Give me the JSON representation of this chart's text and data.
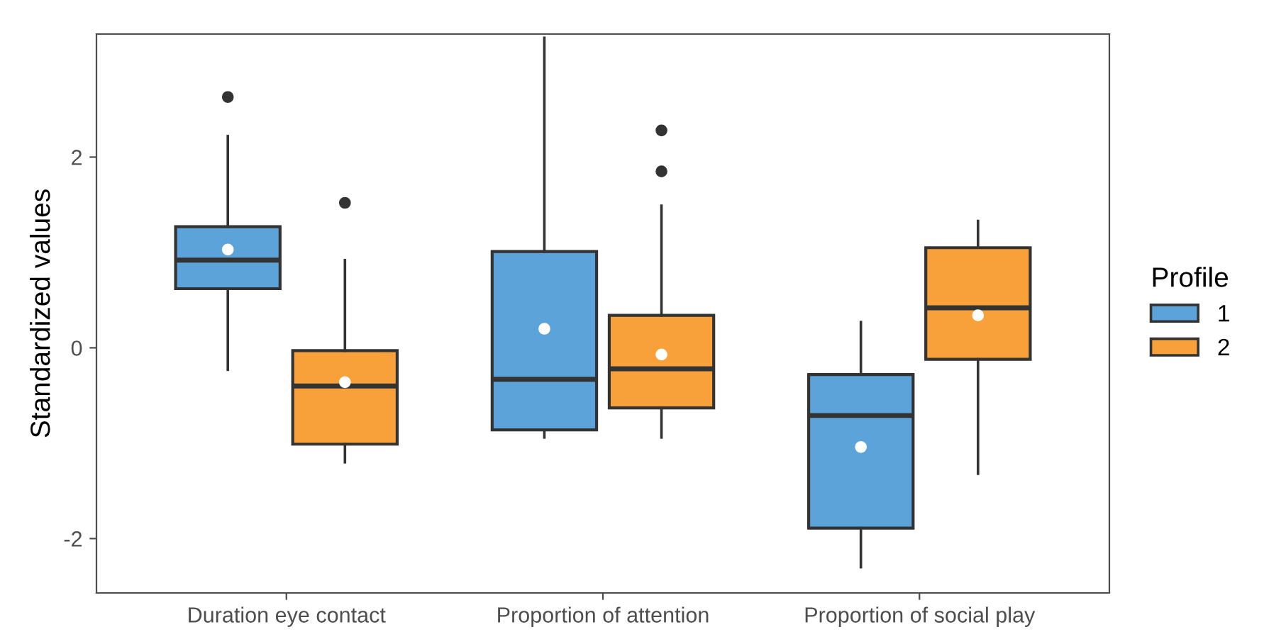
{
  "chart_data": {
    "type": "box",
    "ylabel": "Standardized values",
    "legend_title": "Profile",
    "legend": "right",
    "grid": false,
    "categories": [
      "Duration eye contact",
      "Proportion of attention",
      "Proportion of social play"
    ],
    "ylim": [
      -2.57,
      3.29
    ],
    "yticks": [
      -2,
      0,
      2
    ],
    "series": [
      {
        "name": "1",
        "color": "#5ba3d9",
        "boxes": [
          {
            "low": -0.23,
            "q1": 0.62,
            "median": 0.92,
            "q3": 1.27,
            "high": 2.22,
            "mean": 1.03,
            "outliers": [
              2.63
            ]
          },
          {
            "low": -0.94,
            "q1": -0.86,
            "median": -0.33,
            "q3": 1.01,
            "high": 3.25,
            "mean": 0.2
          },
          {
            "low": -2.3,
            "q1": -1.89,
            "median": -0.71,
            "q3": -0.28,
            "high": 0.27,
            "mean": -1.04
          }
        ]
      },
      {
        "name": "2",
        "color": "#f8a13a",
        "boxes": [
          {
            "low": -1.2,
            "q1": -1.01,
            "median": -0.4,
            "q3": -0.03,
            "high": 0.92,
            "mean": -0.36,
            "outliers": [
              1.52
            ]
          },
          {
            "low": -0.94,
            "q1": -0.63,
            "median": -0.22,
            "q3": 0.34,
            "high": 1.49,
            "mean": -0.07,
            "outliers": [
              2.28,
              1.85
            ]
          },
          {
            "low": -1.32,
            "q1": -0.12,
            "median": 0.42,
            "q3": 1.05,
            "high": 1.33,
            "mean": 0.34
          }
        ]
      }
    ]
  }
}
